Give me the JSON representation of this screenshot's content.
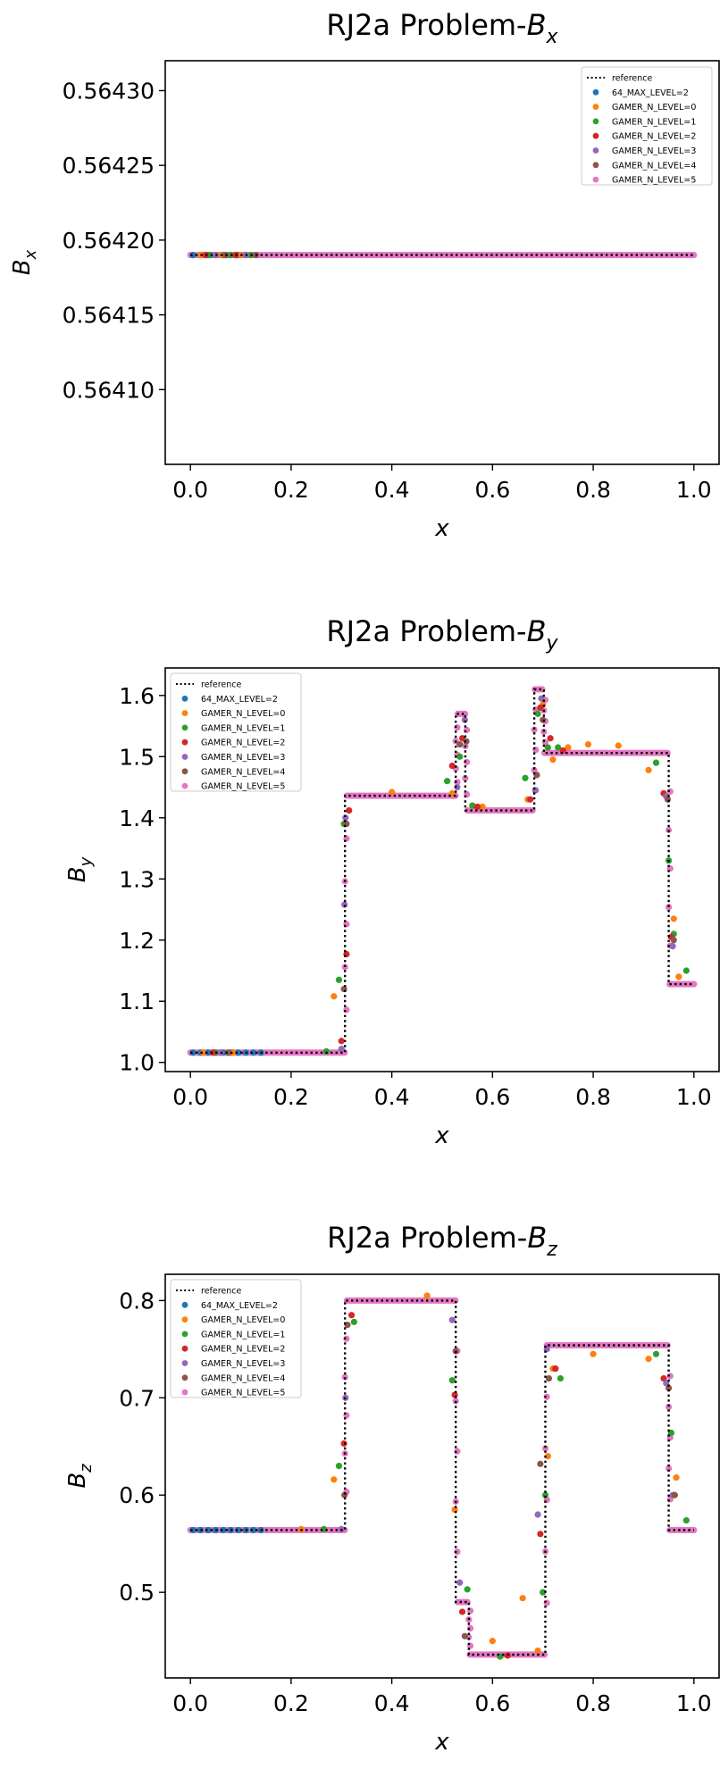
{
  "colors": {
    "reference": "#000000",
    "64_MAX_LEVEL=2": "#1f77b4",
    "GAMER_N_LEVEL=0": "#ff7f0e",
    "GAMER_N_LEVEL=1": "#2ca02c",
    "GAMER_N_LEVEL=2": "#d62728",
    "GAMER_N_LEVEL=3": "#9467bd",
    "GAMER_N_LEVEL=4": "#8c564b",
    "GAMER_N_LEVEL=5": "#e377c2"
  },
  "chart_data": [
    {
      "type": "line",
      "title_main": "RJ2a Problem-",
      "title_var": "B",
      "title_sub": "x",
      "xlabel": "x",
      "ylabel_var": "B",
      "ylabel_sub": "x",
      "xlim": [
        -0.05,
        1.05
      ],
      "ylim": [
        0.56405,
        0.56432
      ],
      "xticks": [
        0.0,
        0.2,
        0.4,
        0.6,
        0.8,
        1.0
      ],
      "xtick_labels": [
        "0.0",
        "0.2",
        "0.4",
        "0.6",
        "0.8",
        "1.0"
      ],
      "yticks": [
        0.5641,
        0.56415,
        0.5642,
        0.56425,
        0.5643
      ],
      "ytick_labels": [
        "0.56410",
        "0.56415",
        "0.56420",
        "0.56425",
        "0.56430"
      ],
      "legend_position": "top-right",
      "legend": [
        "reference",
        "64_MAX_LEVEL=2",
        "GAMER_N_LEVEL=0",
        "GAMER_N_LEVEL=1",
        "GAMER_N_LEVEL=2",
        "GAMER_N_LEVEL=3",
        "GAMER_N_LEVEL=4",
        "GAMER_N_LEVEL=5"
      ],
      "reference": {
        "x": [
          0.0,
          1.0
        ],
        "y": [
          0.56419,
          0.56419
        ]
      },
      "series": [
        {
          "name": "64_MAX_LEVEL=2",
          "x": [
            0.005,
            0.02,
            0.035,
            0.05,
            0.065,
            0.08,
            0.095,
            0.11
          ],
          "y": [
            0.56419,
            0.56419,
            0.56419,
            0.56419,
            0.56419,
            0.56419,
            0.56419,
            0.56419
          ]
        },
        {
          "name": "GAMER_N_LEVEL=0",
          "x": [
            0.02,
            0.06,
            0.1
          ],
          "y": [
            0.56419,
            0.56419,
            0.56419
          ]
        },
        {
          "name": "GAMER_N_LEVEL=1",
          "x": [
            0.04,
            0.08,
            0.12
          ],
          "y": [
            0.56419,
            0.56419,
            0.56419
          ]
        },
        {
          "name": "GAMER_N_LEVEL=2",
          "x": [
            0.03,
            0.09
          ],
          "y": [
            0.56419,
            0.56419
          ]
        },
        {
          "name": "GAMER_N_LEVEL=3",
          "x": [
            0.05,
            0.11
          ],
          "y": [
            0.56419,
            0.56419
          ]
        },
        {
          "name": "GAMER_N_LEVEL=4",
          "x": [
            0.07,
            0.13
          ],
          "y": [
            0.56419,
            0.56419
          ]
        },
        {
          "name": "GAMER_N_LEVEL=5",
          "x": [
            0.0,
            1.0
          ],
          "y": [
            0.56419,
            0.56419
          ],
          "dense": true
        }
      ]
    },
    {
      "type": "line",
      "title_main": "RJ2a Problem-",
      "title_var": "B",
      "title_sub": "y",
      "xlabel": "x",
      "ylabel_var": "B",
      "ylabel_sub": "y",
      "xlim": [
        -0.05,
        1.05
      ],
      "ylim": [
        0.985,
        1.645
      ],
      "xticks": [
        0.0,
        0.2,
        0.4,
        0.6,
        0.8,
        1.0
      ],
      "xtick_labels": [
        "0.0",
        "0.2",
        "0.4",
        "0.6",
        "0.8",
        "1.0"
      ],
      "yticks": [
        1.0,
        1.1,
        1.2,
        1.3,
        1.4,
        1.5,
        1.6
      ],
      "ytick_labels": [
        "1.0",
        "1.1",
        "1.2",
        "1.3",
        "1.4",
        "1.5",
        "1.6"
      ],
      "legend_position": "top-left",
      "legend": [
        "reference",
        "64_MAX_LEVEL=2",
        "GAMER_N_LEVEL=0",
        "GAMER_N_LEVEL=1",
        "GAMER_N_LEVEL=2",
        "GAMER_N_LEVEL=3",
        "GAMER_N_LEVEL=4",
        "GAMER_N_LEVEL=5"
      ],
      "reference": {
        "x": [
          0.0,
          0.307,
          0.307,
          0.527,
          0.527,
          0.546,
          0.546,
          0.683,
          0.683,
          0.702,
          0.702,
          0.95,
          0.95,
          1.0
        ],
        "y": [
          1.016,
          1.016,
          1.436,
          1.436,
          1.57,
          1.57,
          1.412,
          1.412,
          1.61,
          1.61,
          1.506,
          1.506,
          1.128,
          1.128
        ]
      },
      "series": [
        {
          "name": "64_MAX_LEVEL=2",
          "x": [
            0.005,
            0.02,
            0.035,
            0.05,
            0.065,
            0.08,
            0.095,
            0.11,
            0.125,
            0.14
          ],
          "y": [
            1.016,
            1.016,
            1.016,
            1.016,
            1.016,
            1.016,
            1.016,
            1.016,
            1.016,
            1.016
          ]
        },
        {
          "name": "GAMER_N_LEVEL=0",
          "x": [
            0.025,
            0.085,
            0.285,
            0.4,
            0.52,
            0.58,
            0.67,
            0.7,
            0.72,
            0.75,
            0.79,
            0.85,
            0.91,
            0.96,
            0.97
          ],
          "y": [
            1.016,
            1.016,
            1.108,
            1.442,
            1.44,
            1.418,
            1.43,
            1.585,
            1.495,
            1.515,
            1.52,
            1.518,
            1.478,
            1.235,
            1.14
          ]
        },
        {
          "name": "GAMER_N_LEVEL=1",
          "x": [
            0.05,
            0.27,
            0.295,
            0.305,
            0.51,
            0.535,
            0.56,
            0.665,
            0.69,
            0.71,
            0.73,
            0.925,
            0.95,
            0.96,
            0.985
          ],
          "y": [
            1.016,
            1.018,
            1.135,
            1.39,
            1.46,
            1.5,
            1.42,
            1.465,
            1.57,
            1.515,
            1.515,
            1.49,
            1.33,
            1.21,
            1.15
          ]
        },
        {
          "name": "GAMER_N_LEVEL=2",
          "x": [
            0.045,
            0.3,
            0.31,
            0.315,
            0.52,
            0.54,
            0.57,
            0.675,
            0.695,
            0.715,
            0.74,
            0.94,
            0.955
          ],
          "y": [
            1.016,
            1.035,
            1.177,
            1.412,
            1.485,
            1.53,
            1.418,
            1.43,
            1.58,
            1.53,
            1.51,
            1.44,
            1.205
          ]
        },
        {
          "name": "GAMER_N_LEVEL=3",
          "x": [
            0.06,
            0.3,
            0.306,
            0.308,
            0.53,
            0.545,
            0.685,
            0.697,
            0.945,
            0.958
          ],
          "y": [
            1.016,
            1.022,
            1.258,
            1.4,
            1.45,
            1.56,
            1.445,
            1.595,
            1.435,
            1.19
          ]
        },
        {
          "name": "GAMER_N_LEVEL=4",
          "x": [
            0.075,
            0.305,
            0.31,
            0.535,
            0.548,
            0.688,
            0.7,
            0.948,
            0.96
          ],
          "y": [
            1.016,
            1.12,
            1.39,
            1.52,
            1.525,
            1.47,
            1.56,
            1.43,
            1.2
          ]
        },
        {
          "name": "GAMER_N_LEVEL=5",
          "x": [
            0.0,
            0.307,
            0.307,
            0.527,
            0.527,
            0.546,
            0.546,
            0.683,
            0.683,
            0.702,
            0.702,
            0.95,
            0.95,
            1.0
          ],
          "y": [
            1.016,
            1.016,
            1.436,
            1.436,
            1.57,
            1.57,
            1.412,
            1.412,
            1.61,
            1.61,
            1.506,
            1.506,
            1.128,
            1.128
          ],
          "dense": true
        }
      ]
    },
    {
      "type": "line",
      "title_main": "RJ2a Problem-",
      "title_var": "B",
      "title_sub": "z",
      "xlabel": "x",
      "ylabel_var": "B",
      "ylabel_sub": "z",
      "xlim": [
        -0.05,
        1.05
      ],
      "ylim": [
        0.412,
        0.827
      ],
      "xticks": [
        0.0,
        0.2,
        0.4,
        0.6,
        0.8,
        1.0
      ],
      "xtick_labels": [
        "0.0",
        "0.2",
        "0.4",
        "0.6",
        "0.8",
        "1.0"
      ],
      "yticks": [
        0.5,
        0.6,
        0.7,
        0.8
      ],
      "ytick_labels": [
        "0.5",
        "0.6",
        "0.7",
        "0.8"
      ],
      "legend_position": "top-left",
      "legend": [
        "reference",
        "64_MAX_LEVEL=2",
        "GAMER_N_LEVEL=0",
        "GAMER_N_LEVEL=1",
        "GAMER_N_LEVEL=2",
        "GAMER_N_LEVEL=3",
        "GAMER_N_LEVEL=4",
        "GAMER_N_LEVEL=5"
      ],
      "reference": {
        "x": [
          0.0,
          0.307,
          0.307,
          0.527,
          0.527,
          0.553,
          0.553,
          0.705,
          0.705,
          0.95,
          0.95,
          1.0
        ],
        "y": [
          0.564,
          0.564,
          0.8,
          0.8,
          0.49,
          0.49,
          0.436,
          0.436,
          0.754,
          0.754,
          0.564,
          0.564
        ]
      },
      "series": [
        {
          "name": "64_MAX_LEVEL=2",
          "x": [
            0.005,
            0.02,
            0.035,
            0.05,
            0.065,
            0.08,
            0.095,
            0.11,
            0.125,
            0.14
          ],
          "y": [
            0.564,
            0.564,
            0.564,
            0.564,
            0.564,
            0.564,
            0.564,
            0.564,
            0.564,
            0.564
          ]
        },
        {
          "name": "GAMER_N_LEVEL=0",
          "x": [
            0.22,
            0.285,
            0.47,
            0.525,
            0.6,
            0.66,
            0.69,
            0.71,
            0.72,
            0.8,
            0.91,
            0.965
          ],
          "y": [
            0.565,
            0.616,
            0.805,
            0.585,
            0.45,
            0.494,
            0.44,
            0.64,
            0.73,
            0.745,
            0.74,
            0.618
          ]
        },
        {
          "name": "GAMER_N_LEVEL=1",
          "x": [
            0.265,
            0.295,
            0.325,
            0.52,
            0.55,
            0.615,
            0.7,
            0.705,
            0.735,
            0.925,
            0.955,
            0.985
          ],
          "y": [
            0.565,
            0.63,
            0.778,
            0.718,
            0.503,
            0.434,
            0.5,
            0.6,
            0.72,
            0.745,
            0.664,
            0.574
          ]
        },
        {
          "name": "GAMER_N_LEVEL=2",
          "x": [
            0.305,
            0.32,
            0.525,
            0.54,
            0.63,
            0.695,
            0.725,
            0.94
          ],
          "y": [
            0.653,
            0.785,
            0.703,
            0.48,
            0.435,
            0.56,
            0.73,
            0.72
          ]
        },
        {
          "name": "GAMER_N_LEVEL=3",
          "x": [
            0.3,
            0.308,
            0.52,
            0.535,
            0.69,
            0.708,
            0.945,
            0.958
          ],
          "y": [
            0.565,
            0.7,
            0.78,
            0.51,
            0.58,
            0.75,
            0.715,
            0.6
          ]
        },
        {
          "name": "GAMER_N_LEVEL=4",
          "x": [
            0.306,
            0.312,
            0.527,
            0.545,
            0.695,
            0.712,
            0.95,
            0.962
          ],
          "y": [
            0.6,
            0.775,
            0.748,
            0.455,
            0.632,
            0.72,
            0.71,
            0.6
          ]
        },
        {
          "name": "GAMER_N_LEVEL=5",
          "x": [
            0.0,
            0.307,
            0.307,
            0.527,
            0.527,
            0.553,
            0.553,
            0.705,
            0.705,
            0.95,
            0.95,
            1.0
          ],
          "y": [
            0.564,
            0.564,
            0.8,
            0.8,
            0.49,
            0.49,
            0.436,
            0.436,
            0.754,
            0.754,
            0.564,
            0.564
          ],
          "dense": true
        }
      ]
    }
  ]
}
